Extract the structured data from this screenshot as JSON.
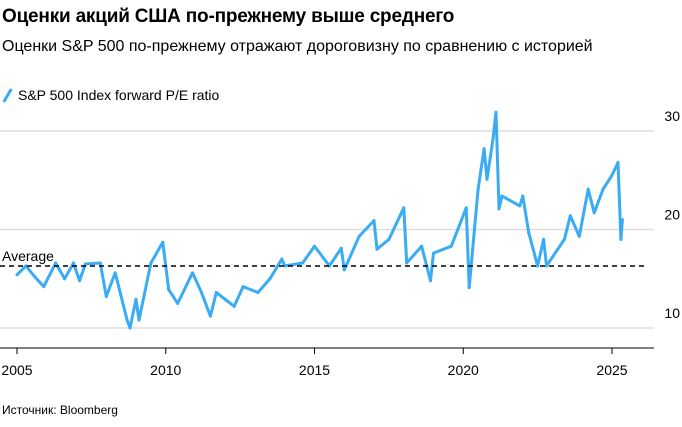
{
  "header": {
    "title": "Оценки акций США по-прежнему выше среднего",
    "subtitle": "Оценки S&P 500 по-прежнему отражают дороговизну по сравнению с историей"
  },
  "source": "Источник: Bloomberg",
  "colors": {
    "series": "#3aacf4",
    "grid": "#dddddd",
    "average": "#000000"
  },
  "chart_data": {
    "type": "line",
    "title": "Оценки акций США по-прежнему выше среднего",
    "legend": [
      "S&P 500 Index forward P/E ratio"
    ],
    "legend_position": "top-left",
    "xlabel": "",
    "ylabel": "",
    "xlim": [
      2005,
      2026
    ],
    "ylim": [
      10,
      30
    ],
    "x_ticks": [
      "2005",
      "2010",
      "2015",
      "2020",
      "2025"
    ],
    "y_ticks": [
      "10",
      "20",
      "30"
    ],
    "grid": true,
    "average": {
      "label": "Average",
      "value": 16.3
    },
    "series": [
      {
        "name": "S&P 500 Index forward P/E ratio",
        "x": [
          2005.0,
          2005.3,
          2005.6,
          2005.9,
          2006.3,
          2006.6,
          2006.9,
          2007.1,
          2007.3,
          2007.8,
          2008.0,
          2008.3,
          2008.7,
          2008.8,
          2009.0,
          2009.1,
          2009.5,
          2009.9,
          2010.1,
          2010.4,
          2010.9,
          2011.2,
          2011.5,
          2011.7,
          2012.3,
          2012.6,
          2013.1,
          2013.5,
          2013.9,
          2014.0,
          2014.6,
          2015.0,
          2015.5,
          2015.9,
          2016.0,
          2016.5,
          2017.0,
          2017.1,
          2017.5,
          2018.0,
          2018.1,
          2018.6,
          2018.9,
          2019.0,
          2019.6,
          2020.1,
          2020.2,
          2020.5,
          2020.7,
          2020.8,
          2021.0,
          2021.1,
          2021.2,
          2021.3,
          2021.9,
          2022.0,
          2022.2,
          2022.5,
          2022.7,
          2022.8,
          2023.4,
          2023.6,
          2023.9,
          2024.2,
          2024.4,
          2024.7,
          2025.0,
          2025.2,
          2025.3,
          2025.35
        ],
        "values": [
          15.4,
          16.3,
          15.2,
          14.2,
          16.6,
          15.0,
          16.6,
          14.8,
          16.5,
          16.6,
          13.2,
          15.6,
          10.8,
          10.0,
          12.9,
          10.8,
          16.6,
          18.7,
          13.9,
          12.5,
          15.6,
          13.6,
          11.2,
          13.6,
          12.2,
          14.2,
          13.6,
          15.0,
          17.0,
          16.3,
          16.6,
          18.3,
          16.3,
          18.1,
          15.9,
          19.3,
          20.9,
          18.0,
          19.0,
          22.2,
          16.6,
          18.3,
          14.8,
          17.6,
          18.3,
          22.2,
          14.1,
          24.1,
          28.2,
          25.1,
          29.2,
          31.9,
          22.1,
          23.4,
          22.4,
          23.4,
          19.7,
          16.3,
          19.0,
          16.3,
          19.0,
          21.4,
          19.3,
          24.1,
          21.7,
          24.1,
          25.5,
          26.8,
          19.0,
          21.0
        ]
      }
    ]
  }
}
